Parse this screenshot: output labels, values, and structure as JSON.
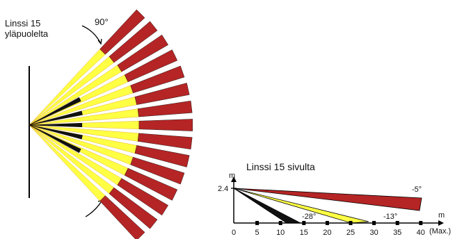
{
  "top_view": {
    "title_line1": "Linssi 15",
    "title_line2": "yläpuolelta",
    "angle_label": "90°",
    "colors": {
      "far": "#b52525",
      "mid": "#ffff44",
      "near": "#111111",
      "outline": "#e0a010"
    }
  },
  "side_view": {
    "title": "Linssi 15 sivulta",
    "y_unit": "m",
    "x_unit": "m",
    "mount_height_label": "2.4",
    "x_max_label": "(Max.)",
    "x_ticks": [
      "0",
      "5",
      "10",
      "15",
      "20",
      "25",
      "30",
      "35",
      "40"
    ],
    "zones": [
      {
        "angle_label": "-5°",
        "color": "#b52525"
      },
      {
        "angle_label": "-13°",
        "color": "#ffff44"
      },
      {
        "angle_label": "-28°",
        "color": "#111111"
      }
    ]
  }
}
